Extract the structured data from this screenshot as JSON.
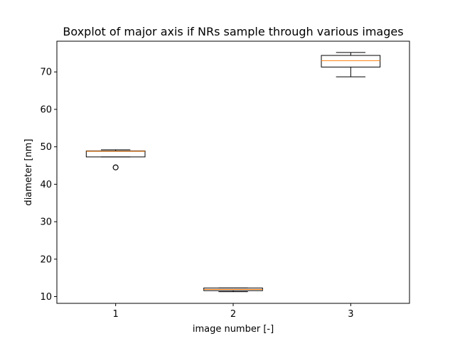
{
  "chart_data": {
    "type": "boxplot",
    "title": "Boxplot of major axis if NRs sample through various images",
    "xlabel": "image number [-]",
    "ylabel": "diameter [nm]",
    "categories": [
      "1",
      "2",
      "3"
    ],
    "xlim": [
      0.5,
      3.5
    ],
    "ylim": [
      8.2,
      78.2
    ],
    "yticks": [
      10,
      20,
      30,
      40,
      50,
      60,
      70
    ],
    "grid": false,
    "boxes": [
      {
        "category": "1",
        "whisker_low": 47.3,
        "q1": 47.3,
        "median": 48.8,
        "q3": 48.9,
        "whisker_high": 49.2,
        "outliers": [
          44.5
        ]
      },
      {
        "category": "2",
        "whisker_low": 11.3,
        "q1": 11.6,
        "median": 11.9,
        "q3": 12.3,
        "whisker_high": 12.3,
        "outliers": []
      },
      {
        "category": "3",
        "whisker_low": 68.7,
        "q1": 71.3,
        "median": 73.0,
        "q3": 74.4,
        "whisker_high": 75.2,
        "outliers": []
      }
    ],
    "colors": {
      "box": "#000000",
      "median": "#ff7f0e",
      "outlier": "#000000"
    }
  }
}
